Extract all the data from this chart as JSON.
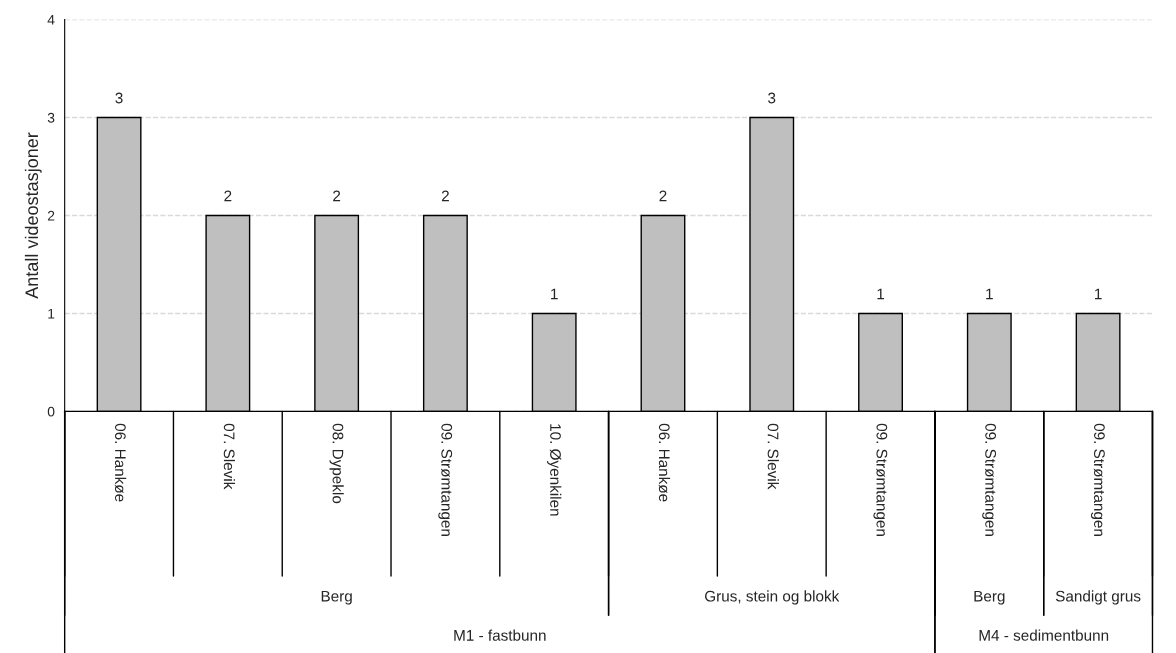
{
  "chart_data": {
    "type": "bar",
    "ylabel": "Antall videostasjoner",
    "categories": [
      "06. Hankøe",
      "07. Slevik",
      "08. Dypeklo",
      "09. Strømtangen",
      "10. Øyenkilen",
      "06. Hankøe",
      "07. Slevik",
      "09. Strømtangen",
      "09. Strømtangen",
      "09. Strømtangen"
    ],
    "values": [
      3,
      2,
      2,
      2,
      1,
      2,
      3,
      1,
      1,
      1
    ],
    "color": "#bfbfbf",
    "ylim": [
      0,
      4
    ],
    "yticks": [
      0,
      1,
      2,
      3,
      4
    ],
    "grid": "y",
    "data_labels": true,
    "annotations": [
      "Berg",
      "Grus, stein og blokk",
      "Berg",
      "Sandigt grus",
      "M1 - fastbunn",
      "M4 - sedimentbunn"
    ]
  }
}
